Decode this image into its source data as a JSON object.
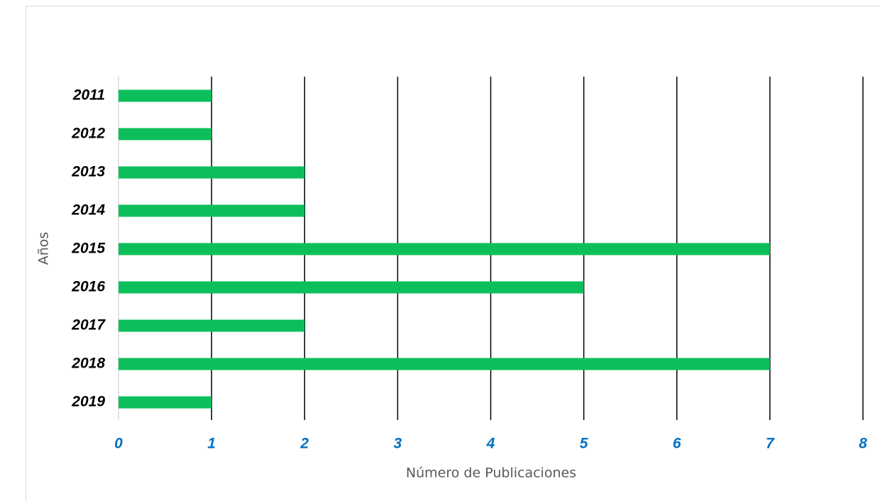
{
  "chart_data": {
    "type": "barh",
    "categories": [
      "2011",
      "2012",
      "2013",
      "2014",
      "2015",
      "2016",
      "2017",
      "2018",
      "2019"
    ],
    "values": [
      1,
      1,
      2,
      2,
      7,
      5,
      2,
      7,
      1
    ],
    "color": "#0dbf5a",
    "xlim": [
      0,
      8
    ],
    "xticks": [
      0,
      1,
      2,
      3,
      4,
      5,
      6,
      7,
      8
    ],
    "grid": true,
    "xlabel": "Número de Publicaciones",
    "ylabel": "Años"
  }
}
